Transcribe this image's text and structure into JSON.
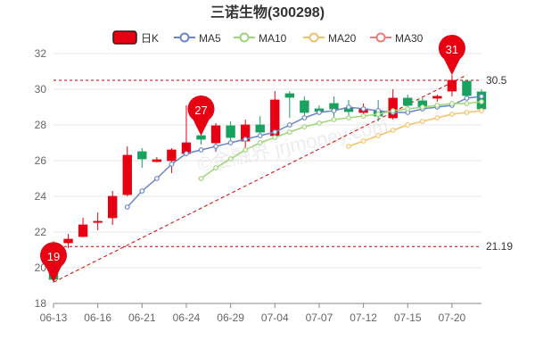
{
  "chart_data": {
    "type": "candlestick",
    "title": "三诺生物(300298)",
    "legend": [
      {
        "label": "日K",
        "color": "#e60012",
        "kind": "box"
      },
      {
        "label": "MA5",
        "color": "#6a86c8",
        "kind": "circle"
      },
      {
        "label": "MA10",
        "color": "#9ed578",
        "kind": "circle"
      },
      {
        "label": "MA20",
        "color": "#f5c26b",
        "kind": "circle"
      },
      {
        "label": "MA30",
        "color": "#ee7b7b",
        "kind": "circle"
      }
    ],
    "ylim": [
      18,
      32
    ],
    "y_ticks": [
      18,
      20,
      22,
      24,
      26,
      28,
      30,
      32
    ],
    "x_tick_labels": [
      "06-13",
      "06-16",
      "06-21",
      "06-24",
      "06-29",
      "07-04",
      "07-07",
      "07-12",
      "07-15",
      "07-20"
    ],
    "x_tick_index": [
      0,
      3,
      6,
      9,
      12,
      15,
      18,
      21,
      24,
      27
    ],
    "grid": true,
    "up_color": "#e60012",
    "down_color": "#19a15f",
    "candles": [
      {
        "o": 21.3,
        "c": 19.35,
        "h": 21.5,
        "l": 19.19
      },
      {
        "o": 21.4,
        "c": 21.6,
        "h": 21.9,
        "l": 21.1
      },
      {
        "o": 21.75,
        "c": 22.4,
        "h": 22.8,
        "l": 21.7
      },
      {
        "o": 22.6,
        "c": 22.6,
        "h": 23.1,
        "l": 22.1
      },
      {
        "o": 22.8,
        "c": 24.0,
        "h": 24.3,
        "l": 22.4
      },
      {
        "o": 24.1,
        "c": 26.3,
        "h": 26.8,
        "l": 24.0
      },
      {
        "o": 26.5,
        "c": 26.1,
        "h": 26.7,
        "l": 25.6
      },
      {
        "o": 25.95,
        "c": 26.05,
        "h": 26.2,
        "l": 25.9
      },
      {
        "o": 26.0,
        "c": 26.6,
        "h": 26.7,
        "l": 25.3
      },
      {
        "o": 26.4,
        "c": 27.0,
        "h": 29.1,
        "l": 26.3
      },
      {
        "o": 27.4,
        "c": 27.2,
        "h": 27.6,
        "l": 26.9
      },
      {
        "o": 27.0,
        "c": 27.95,
        "h": 28.1,
        "l": 26.5
      },
      {
        "o": 27.95,
        "c": 27.3,
        "h": 28.2,
        "l": 26.9
      },
      {
        "o": 27.1,
        "c": 28.0,
        "h": 28.3,
        "l": 26.7
      },
      {
        "o": 28.0,
        "c": 27.6,
        "h": 28.5,
        "l": 27.4
      },
      {
        "o": 27.4,
        "c": 29.4,
        "h": 29.9,
        "l": 27.3
      },
      {
        "o": 29.75,
        "c": 29.55,
        "h": 29.9,
        "l": 28.4
      },
      {
        "o": 29.35,
        "c": 28.7,
        "h": 29.6,
        "l": 28.5
      },
      {
        "o": 28.9,
        "c": 28.75,
        "h": 29.1,
        "l": 28.6
      },
      {
        "o": 29.2,
        "c": 28.9,
        "h": 29.6,
        "l": 28.4
      },
      {
        "o": 28.95,
        "c": 28.75,
        "h": 29.4,
        "l": 28.5
      },
      {
        "o": 28.7,
        "c": 28.9,
        "h": 29.2,
        "l": 28.4
      },
      {
        "o": 28.8,
        "c": 28.5,
        "h": 29.4,
        "l": 28.2
      },
      {
        "o": 28.4,
        "c": 29.5,
        "h": 30.0,
        "l": 28.3
      },
      {
        "o": 29.5,
        "c": 29.1,
        "h": 29.7,
        "l": 28.8
      },
      {
        "o": 29.35,
        "c": 29.0,
        "h": 29.5,
        "l": 28.8
      },
      {
        "o": 29.5,
        "c": 29.6,
        "h": 29.7,
        "l": 29.3
      },
      {
        "o": 29.9,
        "c": 30.5,
        "h": 30.8,
        "l": 29.6
      },
      {
        "o": 30.45,
        "c": 29.65,
        "h": 30.5,
        "l": 29.5
      },
      {
        "o": 29.85,
        "c": 28.9,
        "h": 30.0,
        "l": 28.8
      }
    ],
    "series": [
      {
        "name": "MA5",
        "color": "#6a86c8",
        "start": 5,
        "values": [
          23.4,
          24.3,
          25.0,
          25.8,
          26.4,
          26.6,
          26.8,
          27.0,
          27.2,
          27.4,
          27.6,
          28.0,
          28.4,
          28.7,
          28.8,
          29.0,
          28.9,
          28.8,
          28.7,
          28.7,
          28.9,
          29.0,
          29.1,
          29.5,
          29.6
        ]
      },
      {
        "name": "MA10",
        "color": "#9ed578",
        "start": 10,
        "values": [
          25.0,
          25.6,
          26.1,
          26.6,
          27.0,
          27.3,
          27.6,
          27.9,
          28.1,
          28.3,
          28.4,
          28.5,
          28.6,
          28.8,
          28.9,
          29.0,
          29.1,
          29.2,
          29.2,
          29.3
        ]
      },
      {
        "name": "MA20",
        "color": "#f5c26b",
        "start": 20,
        "values": [
          26.8,
          27.1,
          27.4,
          27.7,
          28.0,
          28.2,
          28.4,
          28.6,
          28.7,
          28.8
        ]
      }
    ],
    "ref_lines": [
      {
        "value": 30.5,
        "label": "30.5"
      },
      {
        "value": 21.19,
        "label": "21.19"
      }
    ],
    "trend_line": {
      "from": [
        0,
        19.19
      ],
      "to": [
        28,
        30.8
      ]
    },
    "pins": [
      {
        "index": 0,
        "value": 19.19,
        "label": "19"
      },
      {
        "index": 10,
        "value": 27.4,
        "label": "27"
      },
      {
        "index": 27,
        "value": 30.8,
        "label": "31"
      }
    ],
    "watermark": "©金融界 jrjmoney.com"
  }
}
